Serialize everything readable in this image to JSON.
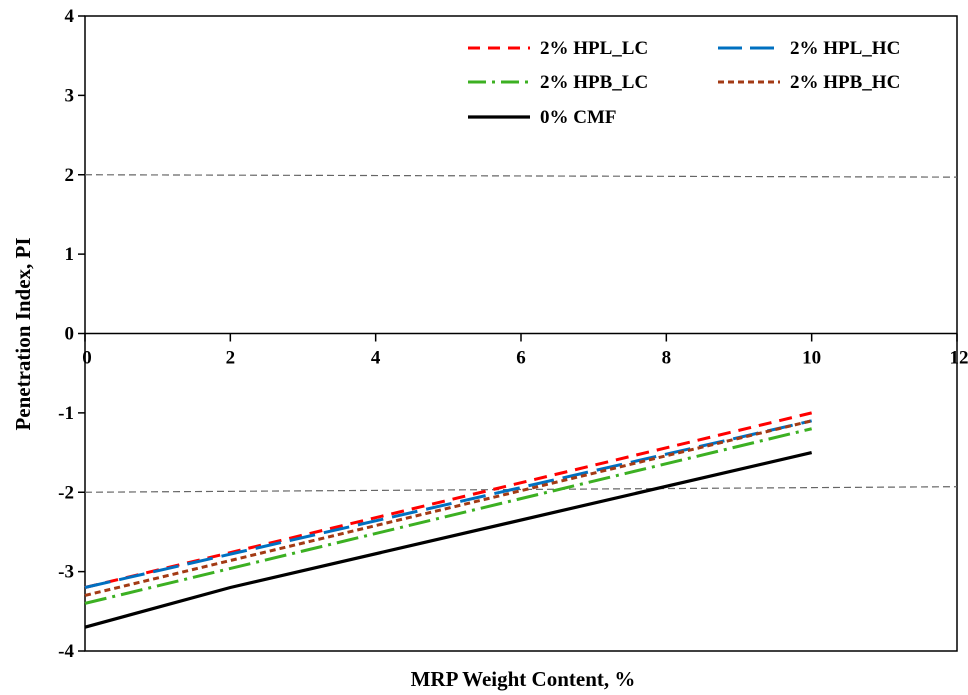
{
  "chart_data": {
    "type": "line",
    "xlabel": "MRP Weight Content, %",
    "ylabel": "Penetration Index, PI",
    "xlim": [
      0,
      12
    ],
    "ylim": [
      -4,
      4
    ],
    "x_ticks": [
      "0",
      "2",
      "4",
      "6",
      "8",
      "10",
      "12"
    ],
    "y_ticks": [
      "-4",
      "-3",
      "-2",
      "-1",
      "0",
      "1",
      "2",
      "3",
      "4"
    ],
    "grid": false,
    "legend_position": "top-right",
    "reference_lines": [
      {
        "x": [
          0,
          12
        ],
        "y": [
          2,
          1.97
        ],
        "color": "#666666",
        "style": "dashed"
      },
      {
        "x": [
          0,
          12
        ],
        "y": [
          -2,
          -1.93
        ],
        "color": "#666666",
        "style": "dashed"
      }
    ],
    "series": [
      {
        "name": "2% HPL_LC",
        "x": [
          0,
          10
        ],
        "y": [
          -3.2,
          -1.0
        ],
        "color": "#ff0000",
        "style": "dash"
      },
      {
        "name": "2% HPL_HC",
        "x": [
          0,
          10
        ],
        "y": [
          -3.2,
          -1.1
        ],
        "color": "#0070c0",
        "style": "longdash"
      },
      {
        "name": "2% HPB_LC",
        "x": [
          0,
          10
        ],
        "y": [
          -3.4,
          -1.2
        ],
        "color": "#3cb022",
        "style": "dashdot"
      },
      {
        "name": "2% HPB_HC",
        "x": [
          0,
          10
        ],
        "y": [
          -3.3,
          -1.1
        ],
        "color": "#a33a14",
        "style": "dot"
      },
      {
        "name": "0% CMF",
        "x": [
          0,
          2,
          10
        ],
        "y": [
          -3.7,
          -3.2,
          -1.5
        ],
        "color": "#000000",
        "style": "solid"
      }
    ]
  }
}
